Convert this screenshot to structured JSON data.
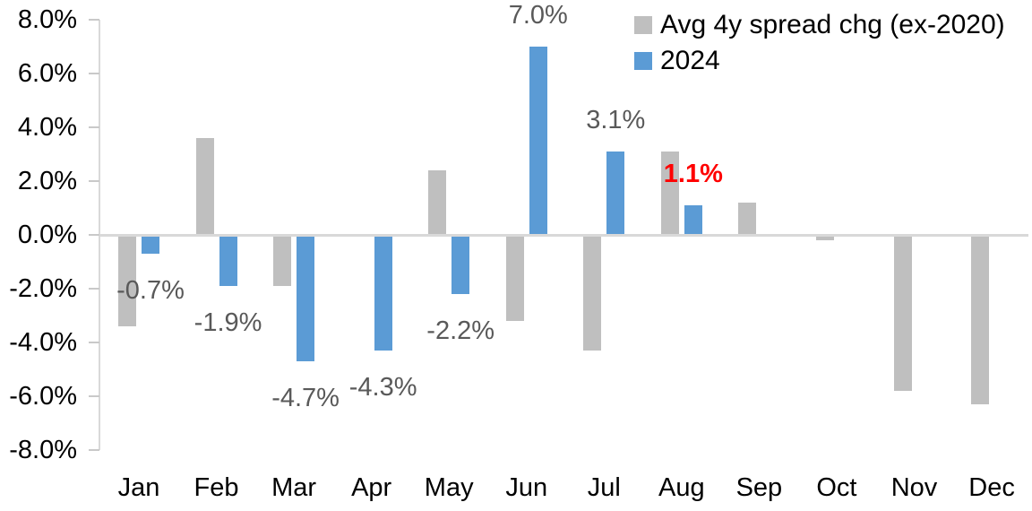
{
  "chart_data": {
    "type": "bar",
    "title": "",
    "xlabel": "",
    "ylabel": "",
    "categories": [
      "Jan",
      "Feb",
      "Mar",
      "Apr",
      "May",
      "Jun",
      "Jul",
      "Aug",
      "Sep",
      "Oct",
      "Nov",
      "Dec"
    ],
    "series": [
      {
        "name": "Avg 4y spread chg (ex-2020)",
        "color": "#BFBFBF",
        "values": [
          -3.4,
          3.6,
          -1.9,
          0.0,
          2.4,
          -3.2,
          -4.3,
          3.1,
          1.2,
          -0.2,
          -5.8,
          -6.3
        ]
      },
      {
        "name": "2024",
        "color": "#5B9BD5",
        "values": [
          -0.7,
          -1.9,
          -4.7,
          -4.3,
          -2.2,
          7.0,
          3.1,
          1.1,
          null,
          null,
          null,
          null
        ]
      }
    ],
    "data_labels": [
      {
        "category": "Jan",
        "text": "-0.7%"
      },
      {
        "category": "Feb",
        "text": "-1.9%"
      },
      {
        "category": "Mar",
        "text": "-4.7%"
      },
      {
        "category": "Apr",
        "text": "-4.3%"
      },
      {
        "category": "May",
        "text": "-2.2%"
      },
      {
        "category": "Jun",
        "text": "7.0%"
      },
      {
        "category": "Jul",
        "text": "3.1%"
      },
      {
        "category": "Aug",
        "text": "1.1%",
        "color": "#FF0000",
        "bold": true
      }
    ],
    "ylim": [
      -8,
      8
    ],
    "ytick_step": 2,
    "yticks": [
      {
        "value": 8,
        "label": "8.0%"
      },
      {
        "value": 6,
        "label": "6.0%"
      },
      {
        "value": 4,
        "label": "4.0%"
      },
      {
        "value": 2,
        "label": "2.0%"
      },
      {
        "value": 0,
        "label": "0.0%"
      },
      {
        "value": -2,
        "label": "-2.0%"
      },
      {
        "value": -4,
        "label": "-4.0%"
      },
      {
        "value": -6,
        "label": "-6.0%"
      },
      {
        "value": -8,
        "label": "-8.0%"
      }
    ],
    "grid": "zero-line-only",
    "legend_position": "top-right"
  },
  "colors": {
    "bar_gray": "#BFBFBF",
    "bar_blue": "#5B9BD5",
    "highlight_red": "#FF0000",
    "data_label_text": "#595959",
    "axis_text": "#000000",
    "axis_line": "#D9D9D9"
  }
}
